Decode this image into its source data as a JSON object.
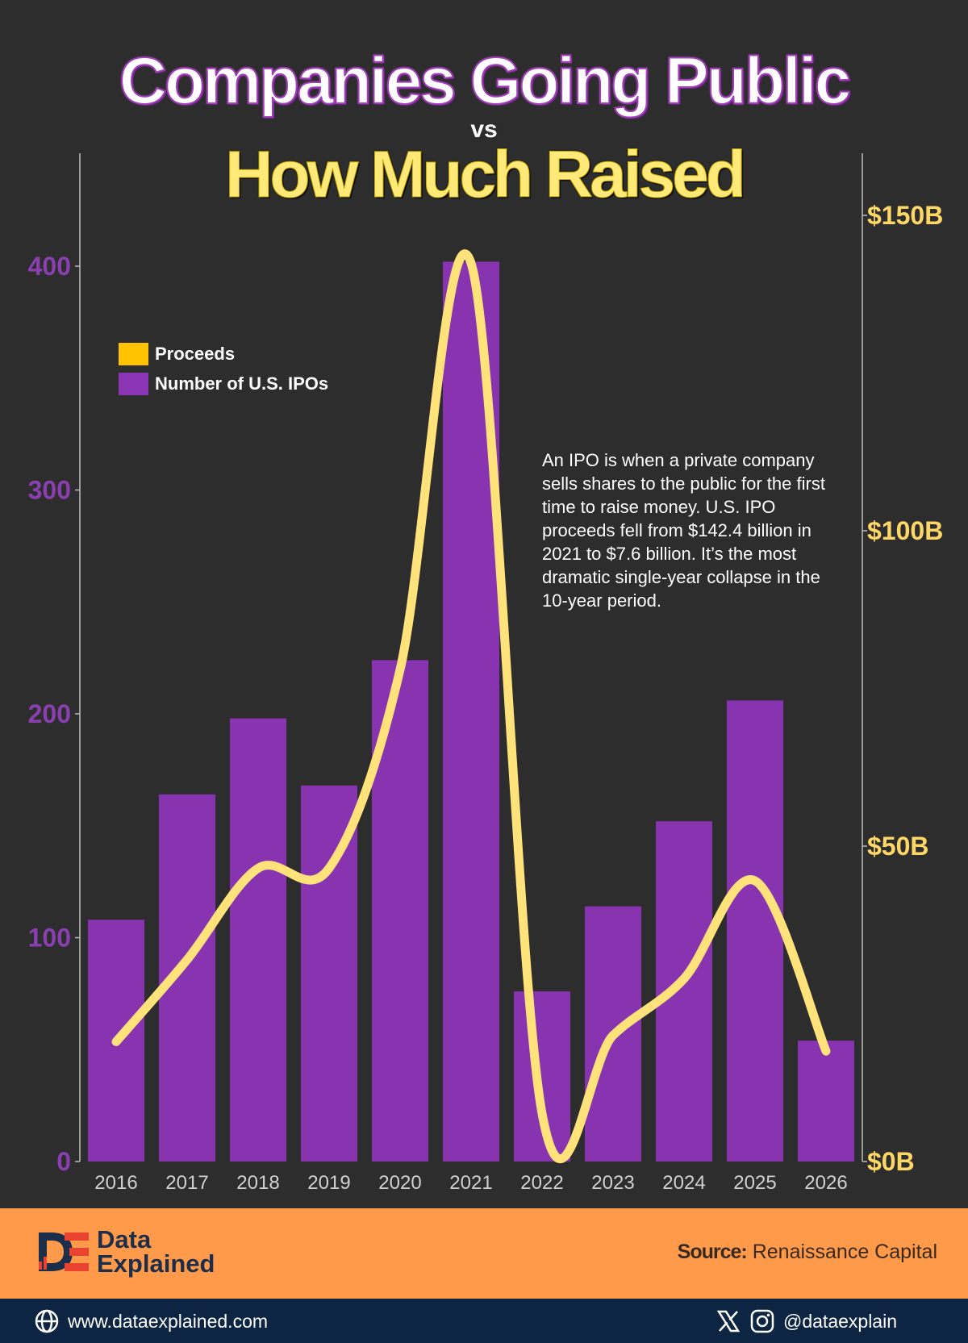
{
  "header": {
    "title_line1": "Companies Going Public",
    "title_vs": "vs",
    "title_line2": "How Much Raised"
  },
  "legend": {
    "proceeds_label": "Proceeds",
    "ipos_label": "Number of U.S. IPOs"
  },
  "annotation": "An IPO is when a private company sells shares to the public for the first time to raise money.  U.S. IPO proceeds fell from $142.4 billion in 2021 to $7.6 billion. It’s the most dramatic single-year collapse in the 10-year period.",
  "footer": {
    "brand_line1": "Data",
    "brand_line2": "Explained",
    "source_label": "Source:",
    "source_value": "Renaissance Capital",
    "website": "www.dataexplained.com",
    "handle": "@dataexplain"
  },
  "colors": {
    "background": "#2d2d2d",
    "bar": "#8833b0",
    "line": "#ffe27a",
    "legend_proceeds": "#ffc300",
    "legend_ipos": "#8a35b5",
    "left_axis_text": "#8a3fb0",
    "right_axis_text": "#ffd766",
    "footer_orange": "#ff9a4a",
    "footer_navy": "#0d2542"
  },
  "icons": [
    "globe-icon",
    "x-logo-icon",
    "instagram-icon",
    "data-explained-logo"
  ],
  "chart_data": {
    "type": "bar",
    "categories": [
      "2016",
      "2017",
      "2018",
      "2019",
      "2020",
      "2021",
      "2022",
      "2023",
      "2024",
      "2025",
      "2026"
    ],
    "series": [
      {
        "name": "Number of U.S. IPOs",
        "type": "bar",
        "axis": "left",
        "values": [
          108,
          164,
          198,
          168,
          224,
          402,
          76,
          114,
          152,
          206,
          54
        ]
      },
      {
        "name": "Proceeds",
        "type": "line",
        "axis": "right",
        "unit": "$B",
        "values": [
          19,
          32,
          46.5,
          46.5,
          78,
          142.4,
          7.6,
          20,
          29,
          44.5,
          17.5
        ]
      }
    ],
    "y_left": {
      "ticks": [
        "0",
        "100",
        "200",
        "300",
        "400"
      ],
      "lim": [
        0,
        400
      ]
    },
    "y_right": {
      "ticks": [
        "$0B",
        "$50B",
        "$100B",
        "$150B"
      ],
      "lim": [
        0,
        150
      ]
    },
    "grid": false,
    "legend_position": "top-left"
  }
}
